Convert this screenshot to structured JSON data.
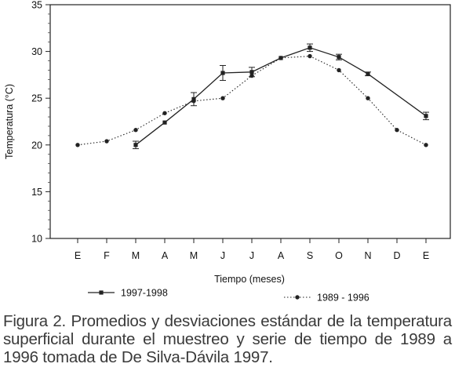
{
  "chart_data": {
    "type": "line",
    "xlabel": "Tiempo (meses)",
    "ylabel": "Temperatura (°C)",
    "ylim": [
      10,
      35
    ],
    "yticks": [
      10,
      15,
      20,
      25,
      30,
      35
    ],
    "categories": [
      "E",
      "F",
      "M",
      "A",
      "M",
      "J",
      "J",
      "A",
      "S",
      "O",
      "N",
      "D",
      "E"
    ],
    "grid": false,
    "legend_position": "bottom",
    "series": [
      {
        "name": "1997-1998",
        "style": "solid",
        "marker": "square",
        "color": "#222222",
        "values": [
          null,
          null,
          20.0,
          22.4,
          24.9,
          27.7,
          27.8,
          29.3,
          30.4,
          29.4,
          27.6,
          null,
          23.1
        ],
        "errors": [
          null,
          null,
          0.4,
          null,
          0.7,
          0.8,
          0.5,
          null,
          0.4,
          0.3,
          0.2,
          null,
          0.4
        ]
      },
      {
        "name": "1989 - 1996",
        "style": "dotted",
        "marker": "circle",
        "color": "#222222",
        "values": [
          20.0,
          20.4,
          21.6,
          23.4,
          24.7,
          25.0,
          27.4,
          29.3,
          29.5,
          28.0,
          25.0,
          21.6,
          20.0
        ],
        "errors": []
      }
    ]
  },
  "caption": "Figura 2. Promedios y desviaciones estándar de la temperatura superficial durante el muestreo y serie de tiempo de 1989 a 1996 tomada de De Silva-Dávila 1997."
}
